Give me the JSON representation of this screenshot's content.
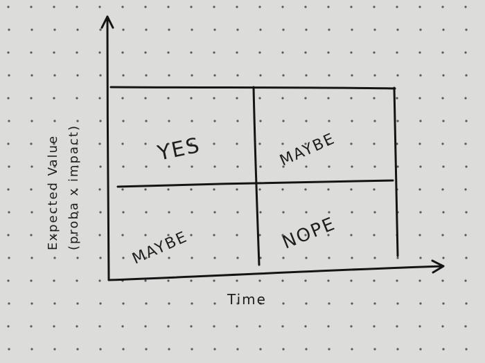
{
  "diagram": {
    "y_axis_label_line1": "Expected Value",
    "y_axis_label_line2": "(proba x impact)",
    "x_axis_label": "Time",
    "quadrants": {
      "top_left": "YES",
      "top_right": "MAYBE",
      "bottom_left": "MAYBE",
      "bottom_right": "NOPE"
    }
  },
  "colors": {
    "paper": "#dcdcdb",
    "ink": "#141414",
    "dots": "#5a5a5a"
  }
}
